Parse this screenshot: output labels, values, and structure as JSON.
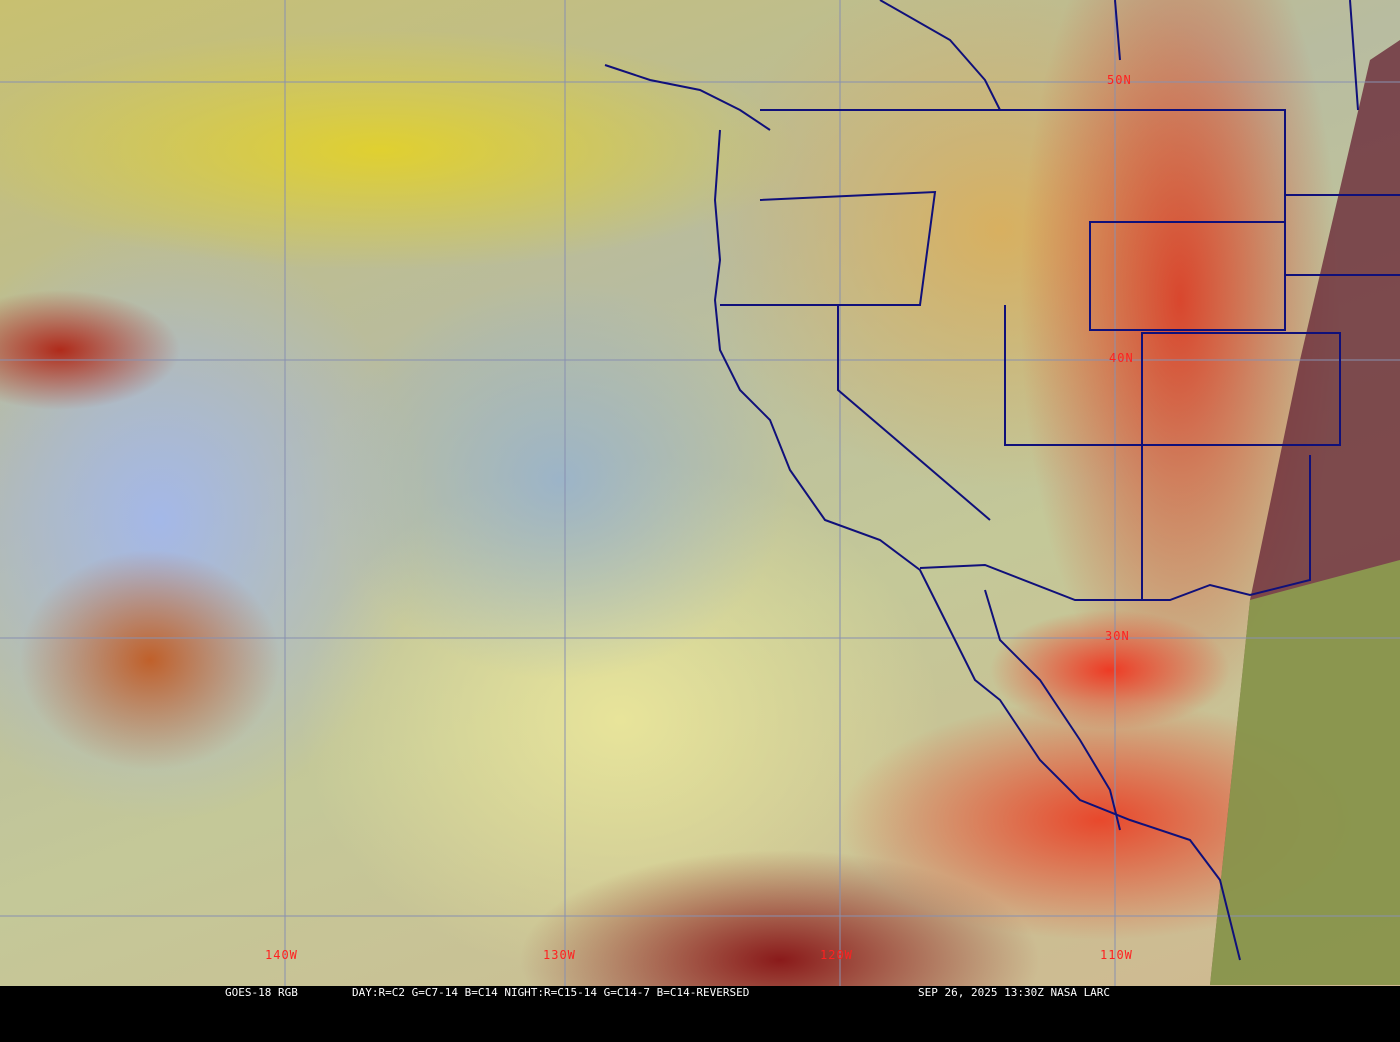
{
  "caption": {
    "satellite": "GOES-18 RGB",
    "recipe": "DAY:R=C2 G=C7-14 B=C14 NIGHT:R=C15-14 G=C14-7 B=C14-REVERSED",
    "timestamp": "SEP 26, 2025 13:30Z NASA LARC"
  },
  "grid": {
    "latitude_labels": [
      "50N",
      "40N",
      "30N"
    ],
    "longitude_labels": [
      "140W",
      "130W",
      "120W",
      "110W"
    ],
    "grid_color": "#8890b0",
    "label_color": "#ff2020",
    "boundary_color": "#10107a"
  }
}
